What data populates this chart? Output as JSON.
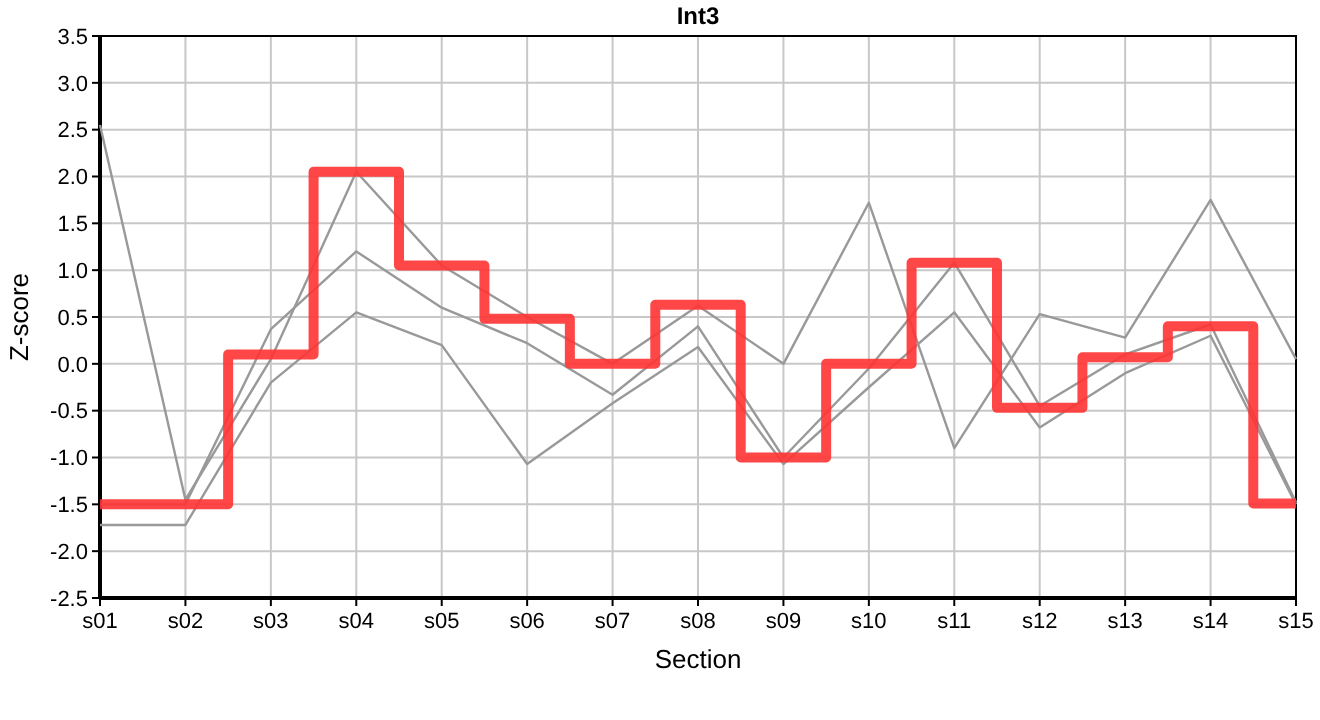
{
  "chart_data": {
    "type": "line",
    "title": "Int3",
    "xlabel": "Section",
    "ylabel": "Z-score",
    "categories": [
      "s01",
      "s02",
      "s03",
      "s04",
      "s05",
      "s06",
      "s07",
      "s08",
      "s09",
      "s10",
      "s11",
      "s12",
      "s13",
      "s14",
      "s15"
    ],
    "series": [
      {
        "color": "#999999",
        "values": [
          2.55,
          -1.45,
          0.05,
          2.05,
          1.05,
          0.5,
          0.0,
          0.62,
          0.0,
          1.72,
          -0.9,
          0.53,
          0.28,
          1.75,
          0.05
        ]
      },
      {
        "color": "#999999",
        "values": [
          -1.5,
          -1.5,
          0.37,
          1.2,
          0.6,
          0.22,
          -0.33,
          0.4,
          -1.0,
          -0.05,
          1.08,
          -0.45,
          0.1,
          0.42,
          -1.48
        ]
      },
      {
        "color": "#999999",
        "values": [
          -1.72,
          -1.72,
          -0.2,
          0.55,
          0.2,
          -1.07,
          -0.42,
          0.18,
          -1.07,
          -0.25,
          0.55,
          -0.68,
          -0.1,
          0.3,
          -1.5
        ]
      },
      {
        "type": "step",
        "color": "#ff3333",
        "values": [
          -1.5,
          -1.5,
          0.1,
          2.05,
          1.05,
          0.48,
          0.0,
          0.63,
          -1.0,
          0.0,
          1.08,
          -0.47,
          0.07,
          0.4,
          -1.49
        ]
      }
    ],
    "ylim": [
      -2.5,
      3.5
    ],
    "yticks": [
      -2.5,
      {
        "value": -2,
        "label": "-2.0"
      },
      -1.5,
      {
        "value": -1,
        "label": "-1.0"
      },
      -0.5,
      {
        "value": 0,
        "label": "0.0"
      },
      0.5,
      {
        "value": 1,
        "label": "1.0"
      },
      1.5,
      {
        "value": 2,
        "label": "2.0"
      },
      2.5,
      {
        "value": 3,
        "label": "3.0"
      },
      3.5
    ],
    "grid": true,
    "marker": "none",
    "line_style": "solid"
  }
}
